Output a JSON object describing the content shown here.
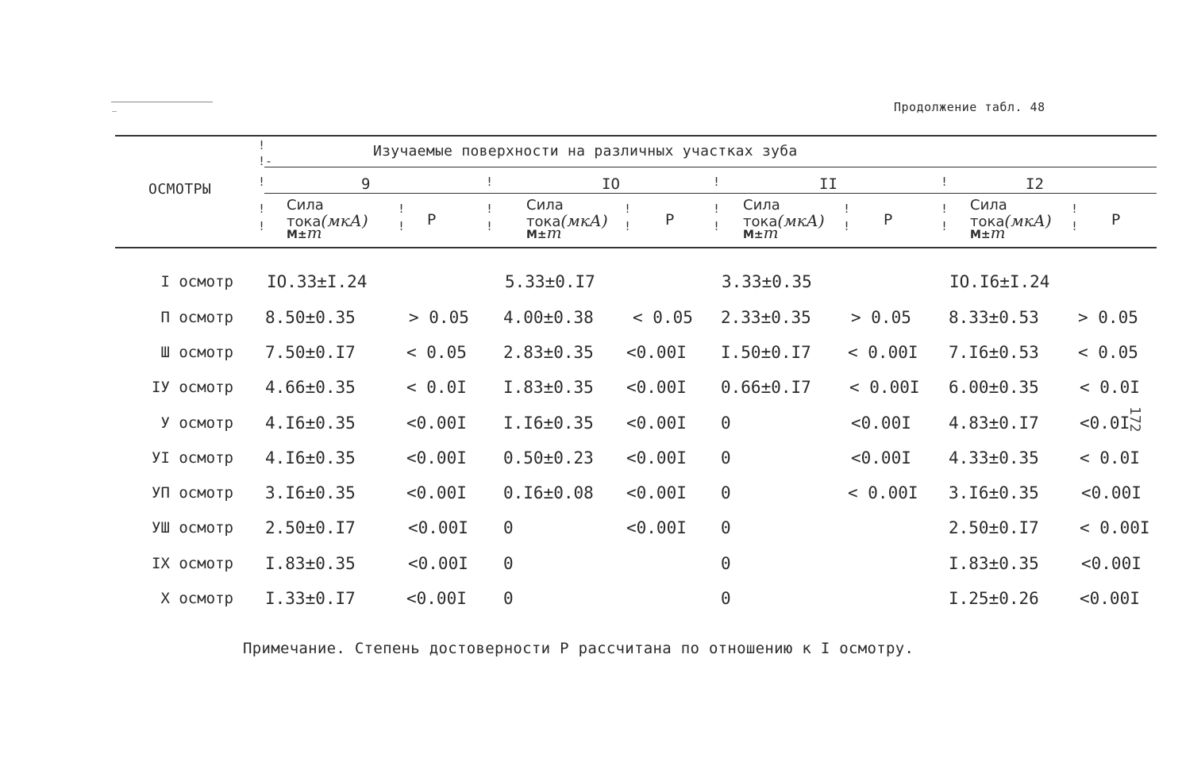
{
  "header": {
    "continuation": "Продолжение табл. 48"
  },
  "table": {
    "row_header": "ОСМОТРЫ",
    "group_title": "Изучаемые поверхности на различных участках зуба",
    "teeth": [
      "9",
      "IO",
      "II",
      "I2"
    ],
    "col_head": {
      "line1": "Сила",
      "line2": "тока",
      "unit": "(мкА)",
      "line3": "M±",
      "line3_sym": "m"
    },
    "p_label": "P",
    "rows": [
      {
        "label": "I осмотр",
        "v9": "IO.33±I.24",
        "p9": "",
        "v10": "5.33±0.I7",
        "p10": "",
        "v11": "3.33±0.35",
        "p11": "",
        "v12": "IO.I6±I.24",
        "p12": ""
      },
      {
        "label": "П осмотр",
        "v9": "8.50±0.35",
        "p9": "> 0.05",
        "v10": "4.00±0.38",
        "p10": "< 0.05",
        "v11": "2.33±0.35",
        "p11": "> 0.05",
        "v12": "8.33±0.53",
        "p12": "> 0.05"
      },
      {
        "label": "Ш осмотр",
        "v9": "7.50±0.I7",
        "p9": "< 0.05",
        "v10": "2.83±0.35",
        "p10": "<0.00I",
        "v11": "I.50±0.I7",
        "p11": "< 0.00I",
        "v12": "7.I6±0.53",
        "p12": "< 0.05"
      },
      {
        "label": "IУ осмотр",
        "v9": "4.66±0.35",
        "p9": "< 0.0I",
        "v10": "I.83±0.35",
        "p10": "<0.00I",
        "v11": "0.66±0.I7",
        "p11": "< 0.00I",
        "v12": "6.00±0.35",
        "p12": "< 0.0I"
      },
      {
        "label": "У осмотр",
        "v9": "4.I6±0.35",
        "p9": "<0.00I",
        "v10": "I.I6±0.35",
        "p10": "<0.00I",
        "v11": "0",
        "p11": "<0.00I",
        "v12": "4.83±0.I7",
        "p12": "<0.0I"
      },
      {
        "label": "УI осмотр",
        "v9": "4.I6±0.35",
        "p9": "<0.00I",
        "v10": "0.50±0.23",
        "p10": "<0.00I",
        "v11": "0",
        "p11": "<0.00I",
        "v12": "4.33±0.35",
        "p12": "< 0.0I"
      },
      {
        "label": "УП осмотр",
        "v9": "3.I6±0.35",
        "p9": "<0.00I",
        "v10": "0.I6±0.08",
        "p10": "<0.00I",
        "v11": "0",
        "p11": "< 0.00I",
        "v12": "3.I6±0.35",
        "p12": "<0.00I"
      },
      {
        "label": "УШ осмотр",
        "v9": "2.50±0.I7",
        "p9": "<0.00I",
        "v10": "0",
        "p10": "<0.00I",
        "v11": "0",
        "p11": "",
        "v12": "2.50±0.I7",
        "p12": "< 0.00I"
      },
      {
        "label": "IX осмотр",
        "v9": "I.83±0.35",
        "p9": "<0.00I",
        "v10": "0",
        "p10": "",
        "v11": "0",
        "p11": "",
        "v12": "I.83±0.35",
        "p12": "<0.00I"
      },
      {
        "label": "X осмотр",
        "v9": "I.33±0.I7",
        "p9": "<0.00I",
        "v10": "0",
        "p10": "",
        "v11": "0",
        "p11": "",
        "v12": "I.25±0.26",
        "p12": "<0.00I"
      }
    ]
  },
  "note": "Примечание. Степень достоверности P рассчитана по отношению к I осмотру.",
  "page_number": "172"
}
